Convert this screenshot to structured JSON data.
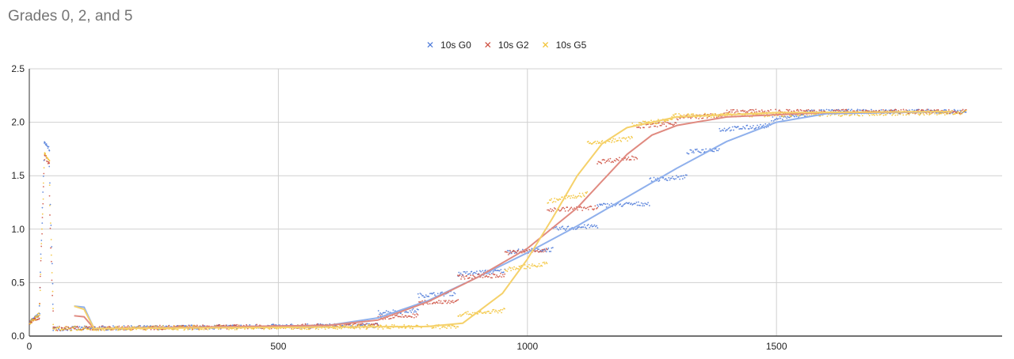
{
  "chart_data": {
    "type": "scatter",
    "title": "Grades 0, 2, and 5",
    "xlabel": "",
    "ylabel": "",
    "xlim": [
      0,
      1953
    ],
    "ylim": [
      0,
      2.5
    ],
    "grid": true,
    "legend_position": "top-center",
    "x_ticks": [
      "0",
      "500",
      "1000",
      "1500"
    ],
    "x_tick_values": [
      0,
      500,
      1000,
      1500
    ],
    "y_ticks": [
      "0.0",
      "0.5",
      "1.0",
      "1.5",
      "2.0",
      "2.5"
    ],
    "y_tick_values": [
      0,
      0.5,
      1.0,
      1.5,
      2.0,
      2.5
    ],
    "series": [
      {
        "name": "10s G0",
        "color": "#4a78d8",
        "trend_color": "#8fb0ec",
        "segments": [
          [
            0,
            20,
            0.13,
            0.2
          ],
          [
            20,
            30,
            0.3,
            1.8
          ],
          [
            30,
            40,
            1.8,
            1.75
          ],
          [
            40,
            48,
            1.6,
            0.1
          ],
          [
            48,
            700,
            0.07,
            0.1
          ],
          [
            700,
            780,
            0.22,
            0.24
          ],
          [
            780,
            855,
            0.38,
            0.4
          ],
          [
            860,
            955,
            0.58,
            0.61
          ],
          [
            960,
            1050,
            0.79,
            0.81
          ],
          [
            1050,
            1140,
            1.0,
            1.03
          ],
          [
            1140,
            1245,
            1.22,
            1.24
          ],
          [
            1245,
            1320,
            1.46,
            1.49
          ],
          [
            1320,
            1385,
            1.72,
            1.75
          ],
          [
            1385,
            1490,
            1.93,
            1.97
          ],
          [
            1490,
            1560,
            2.03,
            2.07
          ],
          [
            1560,
            1880,
            2.1,
            2.1
          ]
        ],
        "trend": [
          [
            90,
            0.28
          ],
          [
            110,
            0.27
          ],
          [
            130,
            0.07
          ],
          [
            600,
            0.1
          ],
          [
            700,
            0.17
          ],
          [
            800,
            0.33
          ],
          [
            900,
            0.55
          ],
          [
            1000,
            0.78
          ],
          [
            1100,
            1.03
          ],
          [
            1200,
            1.3
          ],
          [
            1300,
            1.57
          ],
          [
            1400,
            1.82
          ],
          [
            1500,
            2.0
          ],
          [
            1600,
            2.08
          ],
          [
            1850,
            2.1
          ]
        ]
      },
      {
        "name": "10s G2",
        "color": "#cc4b3c",
        "trend_color": "#e08a80",
        "segments": [
          [
            0,
            20,
            0.12,
            0.18
          ],
          [
            20,
            30,
            0.3,
            1.65
          ],
          [
            30,
            40,
            1.7,
            1.6
          ],
          [
            40,
            48,
            1.3,
            0.08
          ],
          [
            48,
            700,
            0.07,
            0.1
          ],
          [
            700,
            780,
            0.17,
            0.19
          ],
          [
            780,
            860,
            0.31,
            0.33
          ],
          [
            860,
            955,
            0.55,
            0.57
          ],
          [
            955,
            1040,
            0.78,
            0.8
          ],
          [
            1040,
            1140,
            1.18,
            1.2
          ],
          [
            1140,
            1220,
            1.63,
            1.67
          ],
          [
            1220,
            1300,
            1.96,
            1.99
          ],
          [
            1300,
            1400,
            2.04,
            2.07
          ],
          [
            1400,
            1880,
            2.1,
            2.1
          ]
        ],
        "trend": [
          [
            90,
            0.19
          ],
          [
            110,
            0.18
          ],
          [
            130,
            0.07
          ],
          [
            600,
            0.1
          ],
          [
            700,
            0.15
          ],
          [
            800,
            0.32
          ],
          [
            900,
            0.55
          ],
          [
            1000,
            0.82
          ],
          [
            1100,
            1.2
          ],
          [
            1200,
            1.7
          ],
          [
            1250,
            1.88
          ],
          [
            1300,
            1.97
          ],
          [
            1400,
            2.05
          ],
          [
            1600,
            2.09
          ],
          [
            1850,
            2.1
          ]
        ]
      },
      {
        "name": "10s G5",
        "color": "#f2c12e",
        "trend_color": "#f5d16a",
        "segments": [
          [
            0,
            20,
            0.13,
            0.2
          ],
          [
            20,
            30,
            0.3,
            1.7
          ],
          [
            30,
            40,
            1.7,
            1.65
          ],
          [
            40,
            48,
            1.4,
            0.1
          ],
          [
            48,
            860,
            0.07,
            0.09
          ],
          [
            860,
            955,
            0.2,
            0.24
          ],
          [
            955,
            1040,
            0.62,
            0.68
          ],
          [
            1040,
            1120,
            1.26,
            1.33
          ],
          [
            1120,
            1210,
            1.8,
            1.85
          ],
          [
            1210,
            1290,
            1.98,
            2.02
          ],
          [
            1290,
            1880,
            2.06,
            2.09
          ]
        ],
        "trend": [
          [
            90,
            0.28
          ],
          [
            110,
            0.25
          ],
          [
            130,
            0.07
          ],
          [
            800,
            0.09
          ],
          [
            870,
            0.12
          ],
          [
            950,
            0.4
          ],
          [
            1000,
            0.72
          ],
          [
            1050,
            1.1
          ],
          [
            1100,
            1.5
          ],
          [
            1150,
            1.8
          ],
          [
            1200,
            1.95
          ],
          [
            1300,
            2.05
          ],
          [
            1500,
            2.09
          ],
          [
            1850,
            2.1
          ]
        ]
      }
    ]
  }
}
